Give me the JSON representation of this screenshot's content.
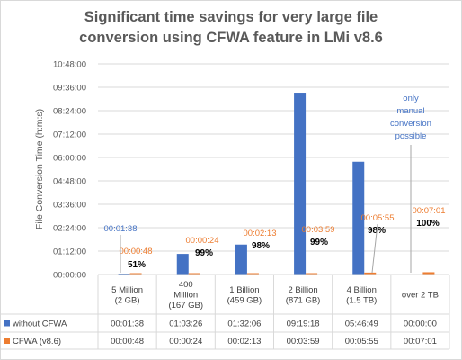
{
  "chart_data": {
    "type": "bar",
    "title": "Significant time savings for very large file conversion using CFWA feature in LMi v8.6",
    "title_lines": [
      "Significant time savings for very large file",
      "conversion using CFWA feature in LMi v8.6"
    ],
    "ylabel": "File Conversion Time (h:m:s)",
    "xlabel": "",
    "ylim_seconds": [
      0,
      38880
    ],
    "y_ticks": [
      "00:00:00",
      "01:12:00",
      "02:24:00",
      "03:36:00",
      "04:48:00",
      "06:00:00",
      "07:12:00",
      "08:24:00",
      "09:36:00",
      "10:48:00"
    ],
    "categories": [
      [
        "5 Million",
        "(2 GB)"
      ],
      [
        "400",
        "Million",
        "(167 GB)"
      ],
      [
        "1 Billion",
        "(459 GB)"
      ],
      [
        "2 Billion",
        "(871 GB)"
      ],
      [
        "4 Billion",
        "(1.5 TB)"
      ],
      [
        "over 2 TB"
      ]
    ],
    "series": [
      {
        "name": "without CFWA",
        "color": "#4472c4",
        "values_hms": [
          "00:01:38",
          "01:03:26",
          "01:32:06",
          "09:19:18",
          "05:46:49",
          "00:00:00"
        ],
        "values_seconds": [
          98,
          3806,
          5526,
          33558,
          20809,
          0
        ]
      },
      {
        "name": "CFWA (v8.6)",
        "color": "#ed7d31",
        "values_hms": [
          "00:00:48",
          "00:00:24",
          "00:02:13",
          "00:03:59",
          "00:05:55",
          "00:07:01"
        ],
        "values_seconds": [
          48,
          24,
          133,
          239,
          355,
          421
        ]
      }
    ],
    "annotations": {
      "blue_labels": [
        "00:01:38"
      ],
      "orange_labels": [
        "00:00:48",
        "00:00:24",
        "00:02:13",
        "00:03:59",
        "00:05:55",
        "00:07:01"
      ],
      "savings": [
        "51%",
        "99%",
        "98%",
        "99%",
        "98%",
        "100%"
      ],
      "note_lines": [
        "only",
        "manual",
        "conversion",
        "possible"
      ]
    },
    "grid": true,
    "legend_placement": "in data table (bottom-left)"
  }
}
